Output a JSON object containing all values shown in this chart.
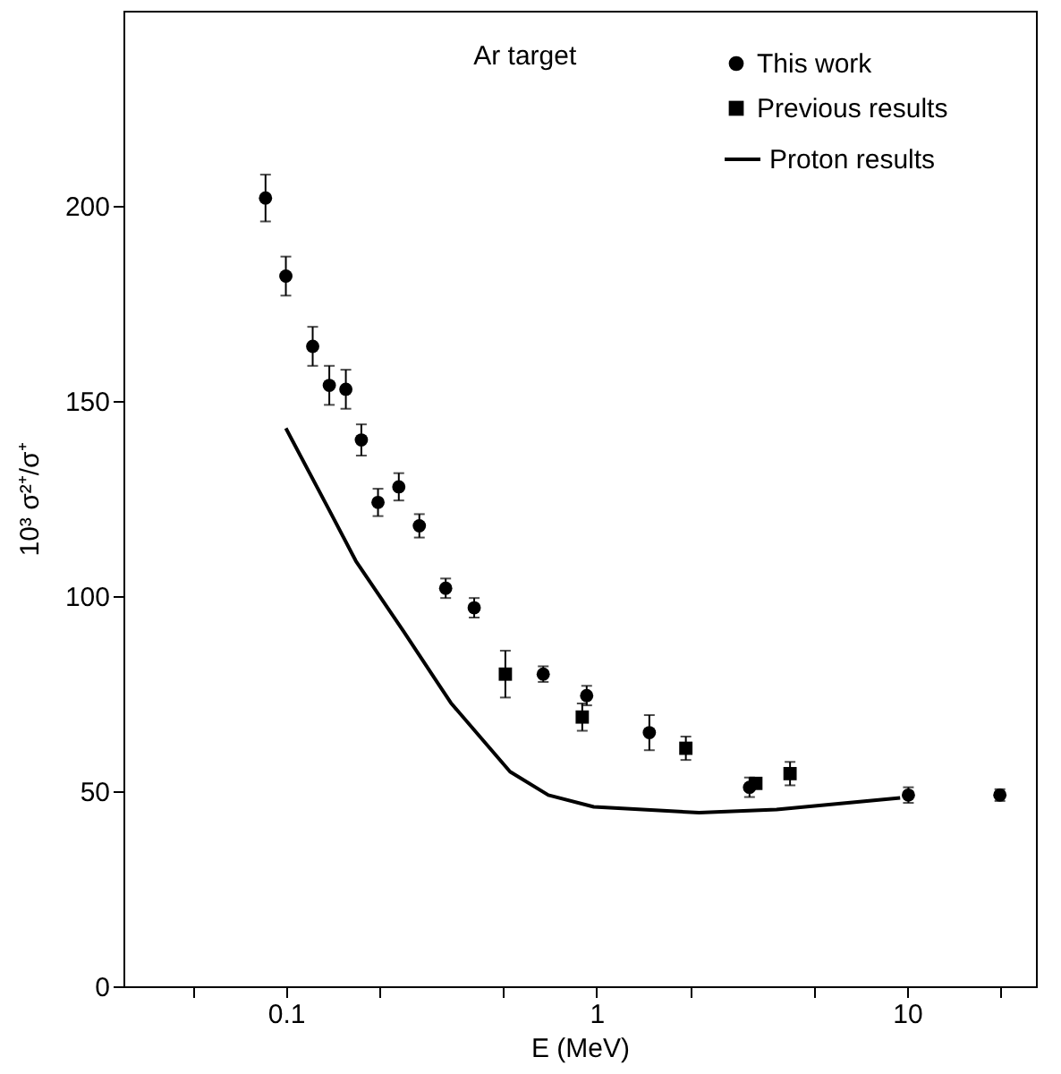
{
  "chart_data": {
    "type": "scatter",
    "title": "Ar target",
    "xlabel": "E (MeV)",
    "ylabel": "10³ σ²⁺/σ⁺",
    "log": "x",
    "xlim": [
      0.03,
      26
    ],
    "ylim": [
      0,
      250
    ],
    "xticks": [
      {
        "value": 0.05,
        "label": null
      },
      0.1,
      {
        "value": 0.2,
        "label": null
      },
      {
        "value": 0.5,
        "label": null
      },
      1,
      {
        "value": 2,
        "label": null
      },
      {
        "value": 5,
        "label": null
      },
      10,
      {
        "value": 20,
        "label": null
      }
    ],
    "yticks": [
      0,
      50,
      100,
      150,
      200
    ],
    "legend": "top right",
    "grid": false,
    "series": [
      {
        "name": "This work",
        "marker": "circle",
        "color": "#000000",
        "x": [
          0.086,
          0.1,
          0.122,
          0.138,
          0.156,
          0.175,
          0.198,
          0.231,
          0.269,
          0.327,
          0.404,
          0.674,
          0.93,
          1.48,
          3.11,
          10.1,
          19.9
        ],
        "values": [
          202,
          182,
          164,
          154,
          153,
          140,
          124,
          128,
          118,
          102,
          97,
          80,
          74.5,
          65,
          51,
          49,
          49
        ],
        "errors": [
          6,
          5,
          5,
          5,
          5,
          4,
          3.5,
          3.5,
          3,
          2.5,
          2.5,
          2,
          2.5,
          4.5,
          2.5,
          2,
          1.5
        ]
      },
      {
        "name": "Previous results",
        "marker": "square",
        "color": "#000000",
        "x": [
          0.509,
          0.9,
          1.94,
          3.26,
          4.2
        ],
        "values": [
          80,
          69,
          61,
          52,
          54.5
        ],
        "errors": [
          6,
          3.5,
          3,
          null,
          3
        ]
      },
      {
        "name": "Proton results",
        "type": "line",
        "marker": "none",
        "line_style": "solid",
        "color": "#000000",
        "x": [
          0.1,
          0.138,
          0.168,
          0.239,
          0.34,
          0.527,
          0.7,
          0.98,
          2.14,
          3.8,
          9.5
        ],
        "values": [
          143,
          122,
          109,
          91,
          72.6,
          55,
          49,
          46,
          44.5,
          45.3,
          48.3
        ]
      }
    ]
  }
}
